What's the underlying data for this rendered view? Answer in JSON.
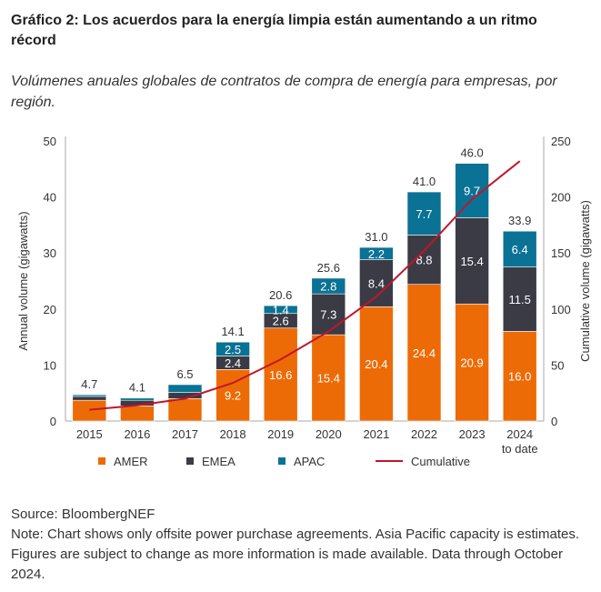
{
  "header": {
    "title": "Gráfico 2: Los acuerdos para la energía limpia están aumentando a un ritmo récord",
    "subtitle": "Volúmenes anuales globales de contratos de compra de energía para empresas, por región."
  },
  "footer": {
    "source": "Source: BloombergNEF",
    "note": "Note: Chart shows only offsite power purchase agreements. Asia Pacific capacity is estimates. Figures are subject to change as more information is made available. Data through October 2024."
  },
  "chart_data": {
    "type": "bar",
    "stacked": true,
    "categories": [
      "2015",
      "2016",
      "2017",
      "2018",
      "2019",
      "2020",
      "2021",
      "2022",
      "2023",
      "2024 to date"
    ],
    "series": [
      {
        "name": "AMER",
        "color": "#ed6b06",
        "values": [
          3.7,
          2.7,
          4.0,
          9.2,
          16.6,
          15.4,
          20.4,
          24.4,
          20.9,
          16.0
        ],
        "labels": [
          null,
          null,
          null,
          "9.2",
          "16.6",
          "15.4",
          "20.4",
          "24.4",
          "20.9",
          "16.0"
        ]
      },
      {
        "name": "EMEA",
        "color": "#3a3b45",
        "values": [
          0.7,
          1.0,
          1.1,
          2.4,
          2.6,
          7.3,
          8.4,
          8.8,
          15.4,
          11.5
        ],
        "labels": [
          null,
          null,
          null,
          "2.4",
          "2.6",
          "7.3",
          "8.4",
          "8.8",
          "15.4",
          "11.5"
        ]
      },
      {
        "name": "APAC",
        "color": "#0a7295",
        "values": [
          0.3,
          0.4,
          1.4,
          2.5,
          1.4,
          2.8,
          2.2,
          7.7,
          9.7,
          6.4
        ],
        "labels": [
          null,
          null,
          null,
          "2.5",
          "1.4",
          "2.8",
          "2.2",
          "7.7",
          "9.7",
          "6.4"
        ]
      }
    ],
    "totals": [
      "4.7",
      "4.1",
      "6.5",
      "14.1",
      "20.6",
      "25.6",
      "31.0",
      "41.0",
      "46.0",
      "33.9"
    ],
    "cumulative": {
      "name": "Cumulative",
      "color": "#c0162c",
      "axis": "right",
      "values": [
        10,
        14,
        20,
        34,
        55,
        80,
        111,
        152,
        198,
        232
      ]
    },
    "ylabel": "Annual volume (gigawatts)",
    "ylim": [
      0,
      50
    ],
    "yticks": [
      0,
      10,
      20,
      30,
      40,
      50
    ],
    "y2label": "Cumulative volume (gigawatts)",
    "y2lim": [
      0,
      250
    ],
    "y2ticks": [
      0,
      50,
      100,
      150,
      200,
      250
    ],
    "legend": "bottom"
  }
}
